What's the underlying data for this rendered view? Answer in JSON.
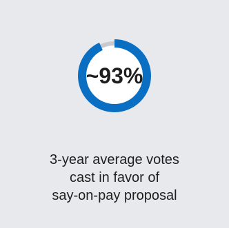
{
  "colors": {
    "background": "#e8e9ec",
    "ring_fill": "#0a6fc2",
    "ring_track": "#c9cacd",
    "ring_inner": "#ffffff",
    "text": "#1f1f1f"
  },
  "chart_data": {
    "type": "pie",
    "variant": "donut",
    "center_label": "~93%",
    "values": [
      93,
      7
    ],
    "slices": [
      "in favor",
      "remainder"
    ],
    "caption_lines": [
      "3-year average votes",
      "cast in favor of",
      "say-on-pay proposal"
    ]
  }
}
